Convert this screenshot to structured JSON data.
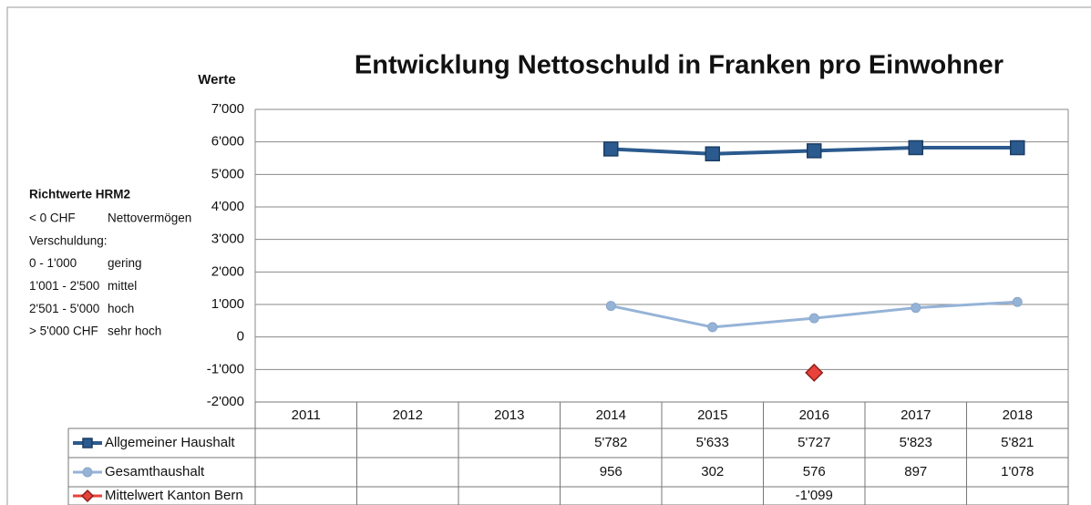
{
  "chart_data": {
    "type": "line",
    "title": "Entwicklung Nettoschuld in Franken pro Einwohner",
    "y_label": "Werte",
    "categories": [
      "2011",
      "2012",
      "2013",
      "2014",
      "2015",
      "2016",
      "2017",
      "2018"
    ],
    "series": [
      {
        "name": "Allgemeiner Haushalt",
        "color": "#2b5a8e",
        "marker": "square",
        "values": [
          null,
          null,
          null,
          5782,
          5633,
          5727,
          5823,
          5821
        ],
        "value_labels": [
          null,
          null,
          null,
          "5'782",
          "5'633",
          "5'727",
          "5'823",
          "5'821"
        ]
      },
      {
        "name": "Gesamthaushalt",
        "color": "#95b3d7",
        "marker": "circle",
        "values": [
          null,
          null,
          null,
          956,
          302,
          576,
          897,
          1078
        ],
        "value_labels": [
          null,
          null,
          null,
          "956",
          "302",
          "576",
          "897",
          "1'078"
        ]
      },
      {
        "name": "Mittelwert Kanton Bern",
        "color": "#e8423a",
        "marker": "diamond",
        "values": [
          null,
          null,
          null,
          null,
          null,
          -1099,
          null,
          null
        ],
        "value_labels": [
          null,
          null,
          null,
          null,
          null,
          "-1'099",
          null,
          null
        ]
      }
    ],
    "ylim": [
      -2000,
      7000
    ],
    "yticks": [
      {
        "value": -2000,
        "label": "-2'000"
      },
      {
        "value": -1000,
        "label": "-1'000"
      },
      0,
      {
        "value": 1000,
        "label": "1'000"
      },
      {
        "value": 2000,
        "label": "2'000"
      },
      {
        "value": 3000,
        "label": "3'000"
      },
      {
        "value": 4000,
        "label": "4'000"
      },
      {
        "value": 5000,
        "label": "5'000"
      },
      {
        "value": 6000,
        "label": "6'000"
      },
      {
        "value": 7000,
        "label": "7'000"
      }
    ],
    "grid": true,
    "side_note": {
      "title": "Richtwerte HRM2",
      "rows": [
        [
          "< 0 CHF",
          "Nettovermögen"
        ],
        [
          "Verschuldung:"
        ],
        [
          "0 - 1'000",
          "gering"
        ],
        [
          "1'001 - 2'500",
          "mittel"
        ],
        [
          "2'501 - 5'000",
          "hoch"
        ],
        [
          "> 5'000 CHF",
          "sehr hoch"
        ]
      ]
    }
  }
}
